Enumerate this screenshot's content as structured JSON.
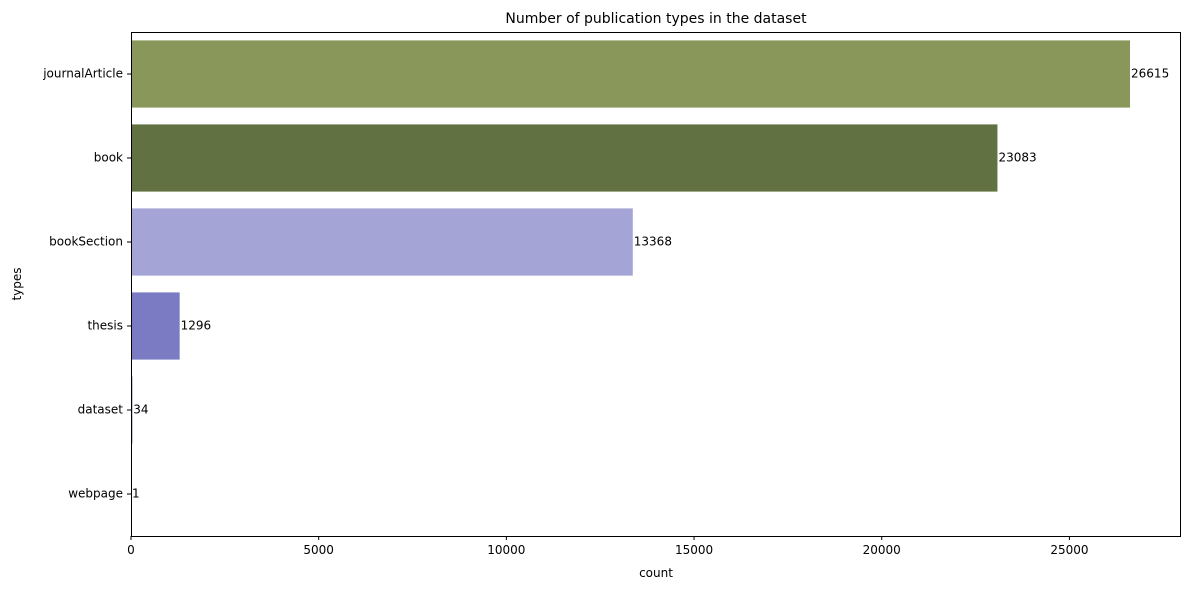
{
  "chart_data": {
    "type": "bar",
    "orientation": "horizontal",
    "title": "Number of publication types in the dataset",
    "xlabel": "count",
    "ylabel": "types",
    "categories": [
      "journalArticle",
      "book",
      "bookSection",
      "thesis",
      "dataset",
      "webpage"
    ],
    "values": [
      26615,
      23083,
      13368,
      1296,
      34,
      1
    ],
    "data_labels": [
      "26615",
      "23083",
      "13368",
      "1296",
      "34",
      "1"
    ],
    "colors": [
      "#8a975a",
      "#627141",
      "#a4a5d6",
      "#7b7bc4",
      "#393b79",
      "#5254a3"
    ],
    "xlim": [
      0,
      27946
    ],
    "xticks": [
      0,
      5000,
      10000,
      15000,
      20000,
      25000
    ],
    "xtick_labels": [
      "0",
      "5000",
      "10000",
      "15000",
      "20000",
      "25000"
    ],
    "grid": false,
    "legend": "none"
  }
}
